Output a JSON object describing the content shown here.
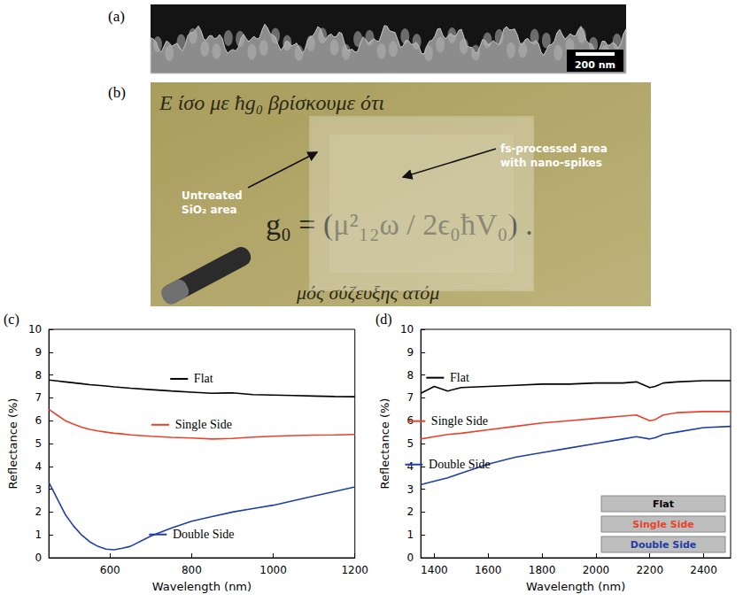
{
  "images": [
    {
      "letter": "(a)",
      "scale_bar": "200 nm"
    },
    {
      "letter": "(b)",
      "text_top": "E ίσο με ħg₀ βρίσκουμε ότι",
      "equation": "g₀ = (μ²₁₂ω / 2ϵ₀ħV₀) .",
      "text_bottom": "μός σύζευξης ατόμ",
      "labels": [
        [
          "Untreated",
          "SiO₂ area"
        ],
        [
          "fs-processed area",
          "with nano-spikes"
        ]
      ]
    }
  ],
  "chart_data": [
    {
      "panel": "(c)",
      "type": "line",
      "x_label": "Wavelength (nm)",
      "y_label": "Reflectance (%)",
      "x": [
        450,
        470,
        490,
        510,
        530,
        550,
        570,
        590,
        610,
        630,
        650,
        700,
        750,
        800,
        850,
        900,
        950,
        1000,
        1050,
        1100,
        1150,
        1200
      ],
      "series": [
        {
          "name": "Flat",
          "color": "#000000",
          "values": [
            7.78,
            7.74,
            7.7,
            7.66,
            7.62,
            7.58,
            7.55,
            7.52,
            7.48,
            7.45,
            7.42,
            7.36,
            7.3,
            7.25,
            7.2,
            7.22,
            7.14,
            7.12,
            7.1,
            7.08,
            7.06,
            7.05
          ]
        },
        {
          "name": "Single Side",
          "color": "#e8432a",
          "values": [
            6.5,
            6.25,
            6.0,
            5.85,
            5.72,
            5.62,
            5.55,
            5.5,
            5.45,
            5.42,
            5.38,
            5.32,
            5.27,
            5.24,
            5.2,
            5.22,
            5.28,
            5.32,
            5.35,
            5.37,
            5.38,
            5.4
          ]
        },
        {
          "name": "Double Side",
          "color": "#1f3fa8",
          "values": [
            3.3,
            2.6,
            1.9,
            1.4,
            1.0,
            0.7,
            0.5,
            0.38,
            0.35,
            0.42,
            0.5,
            0.95,
            1.3,
            1.6,
            1.8,
            2.0,
            2.15,
            2.3,
            2.5,
            2.7,
            2.9,
            3.1
          ]
        }
      ],
      "xlim": [
        450,
        1200
      ],
      "xticks": [
        600,
        800,
        1000,
        1200
      ],
      "ylim": [
        0,
        10
      ],
      "yticks": [
        0,
        1,
        2,
        3,
        4,
        5,
        6,
        7,
        8,
        9,
        10
      ],
      "grid": false
    },
    {
      "panel": "(d)",
      "type": "line",
      "x_label": "Wavelength (nm)",
      "y_label": "Reflectance (%)",
      "x": [
        1350,
        1400,
        1450,
        1500,
        1600,
        1700,
        1800,
        1900,
        2000,
        2100,
        2150,
        2200,
        2220,
        2250,
        2300,
        2400,
        2500
      ],
      "series": [
        {
          "name": "Flat",
          "color": "#000000",
          "values": [
            7.2,
            7.5,
            7.3,
            7.45,
            7.5,
            7.55,
            7.6,
            7.6,
            7.65,
            7.65,
            7.7,
            7.45,
            7.5,
            7.65,
            7.7,
            7.75,
            7.75
          ]
        },
        {
          "name": "Single Side",
          "color": "#e8432a",
          "values": [
            5.2,
            5.3,
            5.4,
            5.45,
            5.6,
            5.75,
            5.9,
            6.0,
            6.1,
            6.2,
            6.25,
            6.0,
            6.05,
            6.25,
            6.35,
            6.4,
            6.4
          ]
        },
        {
          "name": "Double Side",
          "color": "#1f3fa8",
          "values": [
            3.2,
            3.35,
            3.5,
            3.7,
            4.1,
            4.4,
            4.6,
            4.8,
            5.0,
            5.2,
            5.3,
            5.2,
            5.25,
            5.4,
            5.5,
            5.7,
            5.75
          ]
        }
      ],
      "xlim": [
        1350,
        2500
      ],
      "xticks": [
        1400,
        1600,
        1800,
        2000,
        2200,
        2400
      ],
      "ylim": [
        0,
        10
      ],
      "yticks": [
        0,
        1,
        2,
        3,
        4,
        5,
        6,
        7,
        8,
        9,
        10
      ],
      "grid": false,
      "annotations": [
        {
          "text": "Flat",
          "color": "#000000"
        },
        {
          "text": "Single Side",
          "color": "#e8432a"
        },
        {
          "text": "Double Side",
          "color": "#1f3fa8"
        }
      ]
    }
  ]
}
